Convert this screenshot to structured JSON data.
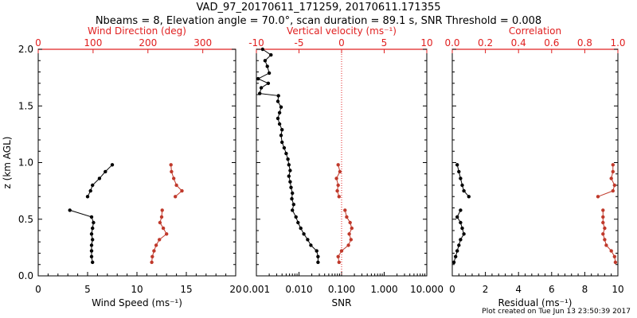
{
  "header": {
    "title": "VAD_97_20170611_171259, 20170611.171355",
    "subtitle": "Nbeams = 8, Elevation angle = 70.0°, scan duration = 89.1 s, SNR Threshold = 0.008"
  },
  "footer": {
    "created": "Plot created on Tue Jun 13 23:50:39 2017"
  },
  "colors": {
    "black": "#000000",
    "red": "#c0392b",
    "axis_red": "#e02020"
  },
  "chart_data": [
    {
      "name": "wind-panel",
      "type": "line",
      "ylabel": "z (km AGL)",
      "ylim": [
        0,
        2
      ],
      "yticks": [
        "0.0",
        "0.5",
        "1.0",
        "1.5",
        "2.0"
      ],
      "bottom_axis": {
        "label": "Wind Speed (ms⁻¹)",
        "range": [
          0,
          20
        ],
        "ticks": [
          "0",
          "5",
          "10",
          "15",
          "20"
        ]
      },
      "top_axis": {
        "label": "Wind Direction (deg)",
        "range": [
          0,
          360
        ],
        "ticks": [
          "0",
          "100",
          "200",
          "300"
        ]
      },
      "series": [
        {
          "name": "Wind Speed",
          "axis": "bottom",
          "color": "black",
          "points": [
            [
              5.5,
              0.12
            ],
            [
              5.4,
              0.17
            ],
            [
              5.4,
              0.22
            ],
            [
              5.4,
              0.27
            ],
            [
              5.5,
              0.32
            ],
            [
              5.4,
              0.37
            ],
            [
              5.5,
              0.42
            ],
            [
              5.6,
              0.47
            ],
            [
              5.4,
              0.52
            ],
            [
              3.2,
              0.58
            ],
            [
              null,
              0.63
            ],
            [
              5.0,
              0.7
            ],
            [
              5.3,
              0.75
            ],
            [
              5.5,
              0.8
            ],
            [
              6.2,
              0.86
            ],
            [
              6.8,
              0.92
            ],
            [
              7.5,
              0.98
            ]
          ]
        },
        {
          "name": "Wind Direction",
          "axis": "top",
          "color": "red",
          "points": [
            [
              207,
              0.12
            ],
            [
              208,
              0.17
            ],
            [
              211,
              0.22
            ],
            [
              215,
              0.27
            ],
            [
              221,
              0.32
            ],
            [
              234,
              0.37
            ],
            [
              228,
              0.42
            ],
            [
              222,
              0.47
            ],
            [
              225,
              0.52
            ],
            [
              226,
              0.58
            ],
            [
              null,
              0.63
            ],
            [
              250,
              0.7
            ],
            [
              262,
              0.75
            ],
            [
              252,
              0.8
            ],
            [
              247,
              0.86
            ],
            [
              243,
              0.92
            ],
            [
              242,
              0.98
            ]
          ]
        }
      ]
    },
    {
      "name": "snr-panel",
      "type": "line",
      "ylim": [
        0,
        2
      ],
      "bottom_axis": {
        "label": "SNR",
        "scale": "log",
        "range": [
          0.001,
          10
        ],
        "ticks": [
          "0.001",
          "0.010",
          "0.100",
          "1.000",
          "10.000"
        ]
      },
      "top_axis": {
        "label": "Vertical velocity (ms⁻¹)",
        "range": [
          -10,
          10
        ],
        "ticks": [
          "-10",
          "-5",
          "0",
          "5",
          "10"
        ]
      },
      "series": [
        {
          "name": "SNR",
          "axis": "bottom",
          "color": "black",
          "points": [
            [
              0.028,
              0.12
            ],
            [
              0.028,
              0.17
            ],
            [
              0.026,
              0.22
            ],
            [
              0.019,
              0.27
            ],
            [
              0.016,
              0.32
            ],
            [
              0.013,
              0.37
            ],
            [
              0.011,
              0.42
            ],
            [
              0.0095,
              0.47
            ],
            [
              0.0085,
              0.52
            ],
            [
              0.007,
              0.58
            ],
            [
              0.0075,
              0.63
            ],
            [
              0.0068,
              0.68
            ],
            [
              0.007,
              0.73
            ],
            [
              0.0065,
              0.78
            ],
            [
              0.0062,
              0.83
            ],
            [
              0.0058,
              0.88
            ],
            [
              0.0062,
              0.93
            ],
            [
              0.0058,
              0.98
            ],
            [
              0.0055,
              1.03
            ],
            [
              0.005,
              1.08
            ],
            [
              0.0045,
              1.13
            ],
            [
              0.004,
              1.18
            ],
            [
              0.0038,
              1.24
            ],
            [
              0.004,
              1.29
            ],
            [
              0.0035,
              1.34
            ],
            [
              0.0032,
              1.39
            ],
            [
              0.0035,
              1.44
            ],
            [
              0.0038,
              1.49
            ],
            [
              0.0032,
              1.54
            ],
            [
              0.0033,
              1.59
            ],
            [
              0.0012,
              1.61
            ],
            [
              0.0013,
              1.66
            ],
            [
              0.0019,
              1.7
            ],
            [
              0.0011,
              1.74
            ],
            [
              0.002,
              1.79
            ],
            [
              0.0018,
              1.85
            ],
            [
              0.0016,
              1.9
            ],
            [
              0.0022,
              1.95
            ],
            [
              0.0014,
              2.0
            ]
          ]
        },
        {
          "name": "Vertical velocity",
          "axis": "top",
          "color": "red",
          "points": [
            [
              -0.3,
              0.12
            ],
            [
              -0.4,
              0.17
            ],
            [
              0.0,
              0.22
            ],
            [
              0.8,
              0.27
            ],
            [
              1.1,
              0.32
            ],
            [
              0.9,
              0.37
            ],
            [
              1.2,
              0.42
            ],
            [
              1.0,
              0.47
            ],
            [
              0.6,
              0.52
            ],
            [
              0.4,
              0.58
            ],
            [
              null,
              0.63
            ],
            [
              -0.3,
              0.7
            ],
            [
              -0.5,
              0.75
            ],
            [
              -0.4,
              0.8
            ],
            [
              -0.6,
              0.86
            ],
            [
              -0.2,
              0.92
            ],
            [
              -0.4,
              0.98
            ]
          ]
        }
      ],
      "reference_line": {
        "axis": "top",
        "value": 0
      }
    },
    {
      "name": "residual-panel",
      "type": "line",
      "ylim": [
        0,
        2
      ],
      "bottom_axis": {
        "label": "Residual (ms⁻¹)",
        "range": [
          0,
          10
        ],
        "ticks": [
          "0",
          "2",
          "4",
          "6",
          "8",
          "10"
        ]
      },
      "top_axis": {
        "label": "Correlation",
        "range": [
          0,
          1
        ],
        "ticks": [
          "0.0",
          "0.2",
          "0.4",
          "0.6",
          "0.8",
          "1.0"
        ]
      },
      "series": [
        {
          "name": "Residual",
          "axis": "bottom",
          "color": "black",
          "points": [
            [
              0.1,
              0.12
            ],
            [
              0.2,
              0.17
            ],
            [
              0.3,
              0.22
            ],
            [
              0.4,
              0.27
            ],
            [
              0.5,
              0.32
            ],
            [
              0.7,
              0.37
            ],
            [
              0.6,
              0.42
            ],
            [
              0.5,
              0.47
            ],
            [
              0.3,
              0.52
            ],
            [
              0.5,
              0.58
            ],
            [
              null,
              0.63
            ],
            [
              1.0,
              0.7
            ],
            [
              0.7,
              0.75
            ],
            [
              0.6,
              0.8
            ],
            [
              0.5,
              0.86
            ],
            [
              0.4,
              0.92
            ],
            [
              0.3,
              0.98
            ]
          ]
        },
        {
          "name": "Correlation",
          "axis": "top",
          "color": "red",
          "points": [
            [
              0.985,
              0.12
            ],
            [
              0.98,
              0.17
            ],
            [
              0.96,
              0.22
            ],
            [
              0.93,
              0.27
            ],
            [
              0.92,
              0.32
            ],
            [
              0.91,
              0.37
            ],
            [
              0.92,
              0.42
            ],
            [
              0.91,
              0.47
            ],
            [
              0.91,
              0.52
            ],
            [
              0.91,
              0.58
            ],
            [
              null,
              0.63
            ],
            [
              0.88,
              0.7
            ],
            [
              0.97,
              0.75
            ],
            [
              0.98,
              0.8
            ],
            [
              0.96,
              0.86
            ],
            [
              0.97,
              0.92
            ],
            [
              0.97,
              0.98
            ]
          ]
        }
      ]
    }
  ]
}
